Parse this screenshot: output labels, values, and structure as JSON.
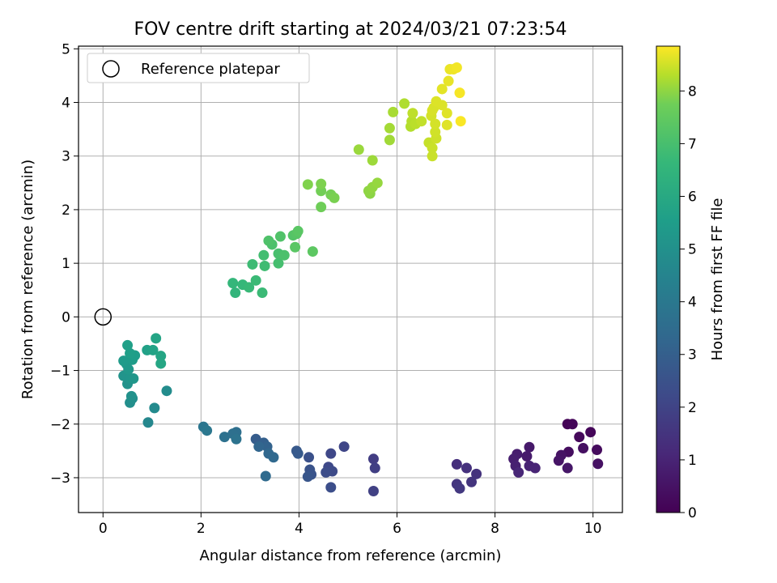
{
  "chart_data": {
    "type": "scatter",
    "title": "FOV centre drift starting at 2024/03/21 07:23:54",
    "xlabel": "Angular distance from reference (arcmin)",
    "ylabel": "Rotation from reference (arcmin)",
    "xlim": [
      -0.5,
      10.6
    ],
    "ylim": [
      -3.65,
      5.05
    ],
    "xticks": [
      0,
      2,
      4,
      6,
      8,
      10
    ],
    "yticks": [
      -3,
      -2,
      -1,
      0,
      1,
      2,
      3,
      4,
      5
    ],
    "grid": true,
    "legend": {
      "placement": "top-left",
      "entries": [
        {
          "label": "Reference platepar",
          "marker": "open-circle"
        }
      ]
    },
    "reference_point": {
      "x": 0,
      "y": 0
    },
    "colorbar": {
      "label": "Hours from first FF file",
      "colormap": "viridis",
      "range": [
        0,
        8.85
      ],
      "ticks": [
        0,
        1,
        2,
        3,
        4,
        5,
        6,
        7,
        8
      ]
    },
    "points": [
      {
        "x": 9.48,
        "y": -2.0,
        "c": 0.05
      },
      {
        "x": 9.58,
        "y": -2.0,
        "c": 0.1
      },
      {
        "x": 9.95,
        "y": -2.15,
        "c": 0.15
      },
      {
        "x": 9.72,
        "y": -2.24,
        "c": 0.2
      },
      {
        "x": 10.08,
        "y": -2.48,
        "c": 0.25
      },
      {
        "x": 9.5,
        "y": -2.52,
        "c": 0.3
      },
      {
        "x": 9.8,
        "y": -2.45,
        "c": 0.35
      },
      {
        "x": 10.1,
        "y": -2.74,
        "c": 0.4
      },
      {
        "x": 9.35,
        "y": -2.58,
        "c": 0.45
      },
      {
        "x": 9.3,
        "y": -2.68,
        "c": 0.5
      },
      {
        "x": 9.48,
        "y": -2.82,
        "c": 0.55
      },
      {
        "x": 8.7,
        "y": -2.43,
        "c": 0.6
      },
      {
        "x": 8.65,
        "y": -2.6,
        "c": 0.65
      },
      {
        "x": 8.45,
        "y": -2.56,
        "c": 0.7
      },
      {
        "x": 8.38,
        "y": -2.65,
        "c": 0.75
      },
      {
        "x": 8.42,
        "y": -2.78,
        "c": 0.8
      },
      {
        "x": 8.7,
        "y": -2.78,
        "c": 0.85
      },
      {
        "x": 8.82,
        "y": -2.82,
        "c": 0.9
      },
      {
        "x": 8.48,
        "y": -2.9,
        "c": 0.95
      },
      {
        "x": 7.22,
        "y": -2.75,
        "c": 1.2
      },
      {
        "x": 7.42,
        "y": -2.82,
        "c": 1.25
      },
      {
        "x": 7.62,
        "y": -2.93,
        "c": 1.3
      },
      {
        "x": 7.52,
        "y": -3.08,
        "c": 1.35
      },
      {
        "x": 7.22,
        "y": -3.12,
        "c": 1.4
      },
      {
        "x": 7.28,
        "y": -3.2,
        "c": 1.45
      },
      {
        "x": 5.52,
        "y": -2.65,
        "c": 1.6
      },
      {
        "x": 5.55,
        "y": -2.82,
        "c": 1.65
      },
      {
        "x": 5.52,
        "y": -3.25,
        "c": 1.7
      },
      {
        "x": 4.92,
        "y": -2.42,
        "c": 1.85
      },
      {
        "x": 4.65,
        "y": -2.55,
        "c": 1.9
      },
      {
        "x": 4.6,
        "y": -2.8,
        "c": 1.95
      },
      {
        "x": 4.68,
        "y": -2.88,
        "c": 2.0
      },
      {
        "x": 4.55,
        "y": -2.9,
        "c": 2.05
      },
      {
        "x": 4.65,
        "y": -3.18,
        "c": 2.1
      },
      {
        "x": 4.2,
        "y": -2.62,
        "c": 2.2
      },
      {
        "x": 4.22,
        "y": -2.85,
        "c": 2.25
      },
      {
        "x": 4.25,
        "y": -2.94,
        "c": 2.3
      },
      {
        "x": 4.18,
        "y": -2.98,
        "c": 2.35
      },
      {
        "x": 3.95,
        "y": -2.5,
        "c": 2.45
      },
      {
        "x": 3.98,
        "y": -2.55,
        "c": 2.5
      },
      {
        "x": 3.12,
        "y": -2.28,
        "c": 2.6
      },
      {
        "x": 3.28,
        "y": -2.35,
        "c": 2.7
      },
      {
        "x": 3.35,
        "y": -2.42,
        "c": 2.8
      },
      {
        "x": 3.18,
        "y": -2.42,
        "c": 2.9
      },
      {
        "x": 3.38,
        "y": -2.55,
        "c": 2.95
      },
      {
        "x": 3.48,
        "y": -2.62,
        "c": 3.0
      },
      {
        "x": 3.32,
        "y": -2.97,
        "c": 3.05
      },
      {
        "x": 2.72,
        "y": -2.15,
        "c": 3.2
      },
      {
        "x": 2.65,
        "y": -2.18,
        "c": 3.25
      },
      {
        "x": 2.48,
        "y": -2.24,
        "c": 3.3
      },
      {
        "x": 2.72,
        "y": -2.28,
        "c": 3.35
      },
      {
        "x": 2.05,
        "y": -2.05,
        "c": 3.45
      },
      {
        "x": 2.12,
        "y": -2.12,
        "c": 3.5
      },
      {
        "x": 0.92,
        "y": -1.97,
        "c": 4.1
      },
      {
        "x": 1.05,
        "y": -1.7,
        "c": 4.2
      },
      {
        "x": 1.3,
        "y": -1.38,
        "c": 4.3
      },
      {
        "x": 0.6,
        "y": -1.52,
        "c": 4.35
      },
      {
        "x": 0.55,
        "y": -1.6,
        "c": 4.4
      },
      {
        "x": 0.58,
        "y": -1.48,
        "c": 4.45
      },
      {
        "x": 0.5,
        "y": -1.25,
        "c": 4.5
      },
      {
        "x": 0.42,
        "y": -1.1,
        "c": 4.55
      },
      {
        "x": 0.55,
        "y": -1.15,
        "c": 4.6
      },
      {
        "x": 0.62,
        "y": -1.15,
        "c": 4.65
      },
      {
        "x": 0.52,
        "y": -0.98,
        "c": 4.7
      },
      {
        "x": 0.48,
        "y": -0.88,
        "c": 4.75
      },
      {
        "x": 0.42,
        "y": -0.82,
        "c": 4.8
      },
      {
        "x": 0.6,
        "y": -0.8,
        "c": 4.85
      },
      {
        "x": 0.65,
        "y": -0.72,
        "c": 4.9
      },
      {
        "x": 0.55,
        "y": -0.68,
        "c": 4.95
      },
      {
        "x": 0.5,
        "y": -0.53,
        "c": 5.0
      },
      {
        "x": 0.9,
        "y": -0.62,
        "c": 5.05
      },
      {
        "x": 1.02,
        "y": -0.62,
        "c": 5.1
      },
      {
        "x": 1.08,
        "y": -0.4,
        "c": 5.15
      },
      {
        "x": 1.18,
        "y": -0.73,
        "c": 5.2
      },
      {
        "x": 1.18,
        "y": -0.87,
        "c": 5.25
      },
      {
        "x": 2.7,
        "y": 0.45,
        "c": 5.8
      },
      {
        "x": 2.65,
        "y": 0.63,
        "c": 5.85
      },
      {
        "x": 2.85,
        "y": 0.6,
        "c": 5.9
      },
      {
        "x": 2.98,
        "y": 0.55,
        "c": 5.95
      },
      {
        "x": 3.12,
        "y": 0.68,
        "c": 6.0
      },
      {
        "x": 3.25,
        "y": 0.45,
        "c": 6.0
      },
      {
        "x": 3.05,
        "y": 0.98,
        "c": 6.05
      },
      {
        "x": 3.3,
        "y": 0.95,
        "c": 6.1
      },
      {
        "x": 3.28,
        "y": 1.15,
        "c": 6.15
      },
      {
        "x": 3.58,
        "y": 1.0,
        "c": 6.2
      },
      {
        "x": 3.58,
        "y": 1.18,
        "c": 6.25
      },
      {
        "x": 3.7,
        "y": 1.15,
        "c": 6.3
      },
      {
        "x": 3.45,
        "y": 1.35,
        "c": 6.3
      },
      {
        "x": 3.38,
        "y": 1.42,
        "c": 6.35
      },
      {
        "x": 3.62,
        "y": 1.5,
        "c": 6.4
      },
      {
        "x": 3.88,
        "y": 1.52,
        "c": 6.45
      },
      {
        "x": 3.95,
        "y": 1.55,
        "c": 6.5
      },
      {
        "x": 3.98,
        "y": 1.6,
        "c": 6.55
      },
      {
        "x": 3.92,
        "y": 1.3,
        "c": 6.55
      },
      {
        "x": 4.28,
        "y": 1.22,
        "c": 6.6
      },
      {
        "x": 4.45,
        "y": 2.05,
        "c": 6.9
      },
      {
        "x": 4.45,
        "y": 2.35,
        "c": 6.95
      },
      {
        "x": 4.65,
        "y": 2.28,
        "c": 7.0
      },
      {
        "x": 4.72,
        "y": 2.22,
        "c": 7.05
      },
      {
        "x": 4.45,
        "y": 2.48,
        "c": 7.1
      },
      {
        "x": 4.18,
        "y": 2.47,
        "c": 7.15
      },
      {
        "x": 5.45,
        "y": 2.3,
        "c": 7.3
      },
      {
        "x": 5.42,
        "y": 2.35,
        "c": 7.35
      },
      {
        "x": 5.5,
        "y": 2.42,
        "c": 7.4
      },
      {
        "x": 5.6,
        "y": 2.5,
        "c": 7.45
      },
      {
        "x": 5.22,
        "y": 3.12,
        "c": 7.5
      },
      {
        "x": 5.5,
        "y": 2.92,
        "c": 7.55
      },
      {
        "x": 5.85,
        "y": 3.3,
        "c": 7.6
      },
      {
        "x": 5.85,
        "y": 3.52,
        "c": 7.65
      },
      {
        "x": 5.92,
        "y": 3.82,
        "c": 7.7
      },
      {
        "x": 6.15,
        "y": 3.98,
        "c": 7.8
      },
      {
        "x": 6.28,
        "y": 3.55,
        "c": 7.85
      },
      {
        "x": 6.3,
        "y": 3.65,
        "c": 7.9
      },
      {
        "x": 6.38,
        "y": 3.6,
        "c": 7.95
      },
      {
        "x": 6.32,
        "y": 3.8,
        "c": 8.0
      },
      {
        "x": 6.5,
        "y": 3.65,
        "c": 8.05
      },
      {
        "x": 6.65,
        "y": 3.25,
        "c": 8.1
      },
      {
        "x": 6.72,
        "y": 3.15,
        "c": 8.15
      },
      {
        "x": 6.72,
        "y": 3.0,
        "c": 8.15
      },
      {
        "x": 6.8,
        "y": 3.33,
        "c": 8.2
      },
      {
        "x": 6.78,
        "y": 3.45,
        "c": 8.25
      },
      {
        "x": 6.78,
        "y": 3.6,
        "c": 8.3
      },
      {
        "x": 6.7,
        "y": 3.75,
        "c": 8.3
      },
      {
        "x": 6.72,
        "y": 3.85,
        "c": 8.35
      },
      {
        "x": 6.75,
        "y": 3.9,
        "c": 8.35
      },
      {
        "x": 6.8,
        "y": 4.02,
        "c": 8.4
      },
      {
        "x": 6.92,
        "y": 3.95,
        "c": 8.4
      },
      {
        "x": 7.02,
        "y": 3.8,
        "c": 8.45
      },
      {
        "x": 7.02,
        "y": 3.58,
        "c": 8.45
      },
      {
        "x": 6.92,
        "y": 4.25,
        "c": 8.5
      },
      {
        "x": 7.05,
        "y": 4.4,
        "c": 8.55
      },
      {
        "x": 7.08,
        "y": 4.62,
        "c": 8.6
      },
      {
        "x": 7.15,
        "y": 4.62,
        "c": 8.65
      },
      {
        "x": 7.22,
        "y": 4.65,
        "c": 8.7
      },
      {
        "x": 7.28,
        "y": 4.18,
        "c": 8.75
      },
      {
        "x": 7.3,
        "y": 3.65,
        "c": 8.8
      }
    ]
  }
}
